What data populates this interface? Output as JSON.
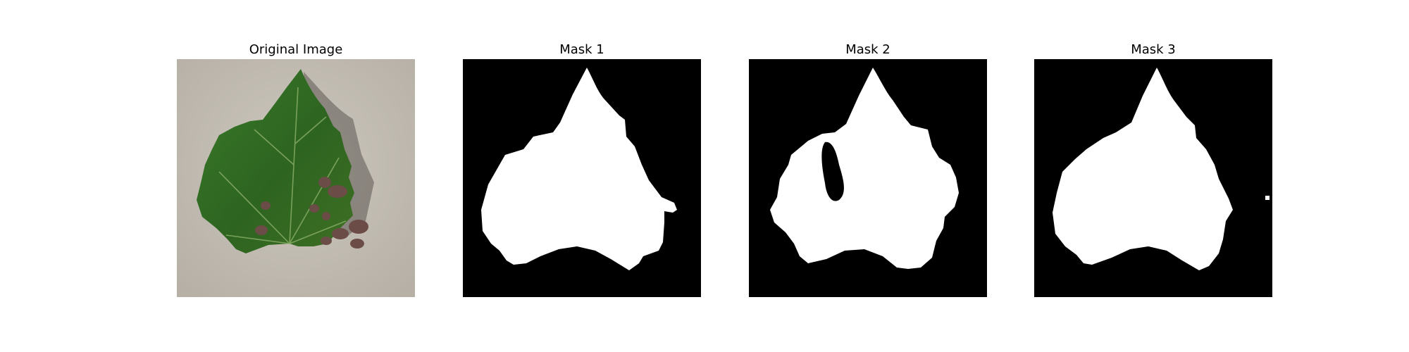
{
  "figure": {
    "panels": [
      {
        "title": "Original Image",
        "kind": "photo",
        "content": "leaf"
      },
      {
        "title": "Mask 1",
        "kind": "mask"
      },
      {
        "title": "Mask 2",
        "kind": "mask"
      },
      {
        "title": "Mask 3",
        "kind": "mask"
      }
    ],
    "colors": {
      "background": "#c7c1b8",
      "leaf_green": "#2f6a22",
      "leaf_dark": "#1f4d18",
      "lesion": "#6a4a44",
      "mask_fg": "#ffffff",
      "mask_bg": "#000000"
    }
  }
}
